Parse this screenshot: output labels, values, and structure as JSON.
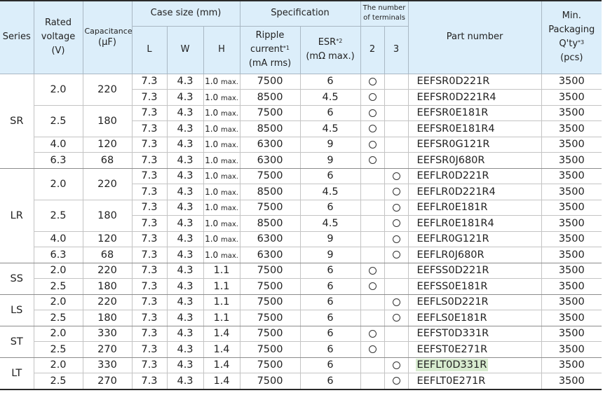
{
  "headers": {
    "series": "Series",
    "rated_voltage": "Rated voltage",
    "rated_voltage_unit": "(V)",
    "capacitance": "Capacitance",
    "capacitance_unit": "(µF)",
    "case_size": "Case size (mm)",
    "case_l": "L",
    "case_w": "W",
    "case_h": "H",
    "specification": "Specification",
    "ripple": "Ripple current",
    "ripple_note": "*1",
    "ripple_unit": "(mA rms)",
    "esr": "ESR",
    "esr_note": "*2",
    "esr_unit": "(mΩ max.)",
    "terminals": "The number of terminals",
    "term_2": "2",
    "term_3": "3",
    "part_number": "Part number",
    "packaging_1": "Min. Packaging",
    "packaging_2": "Q'ty",
    "packaging_note": "*3",
    "packaging_unit": "(pcs)"
  },
  "max_suffix": "max.",
  "series_groups": [
    {
      "series": "SR",
      "voltage_groups": [
        {
          "voltage": "2.0",
          "capacitance": "220",
          "rows": [
            {
              "l": "7.3",
              "w": "4.3",
              "h": "1.0",
              "h_max": true,
              "ripple": "7500",
              "esr": "6",
              "terminals": 2,
              "part": "EEFSR0D221R",
              "qty": "3500"
            },
            {
              "l": "7.3",
              "w": "4.3",
              "h": "1.0",
              "h_max": true,
              "ripple": "8500",
              "esr": "4.5",
              "terminals": 2,
              "part": "EEFSR0D221R4",
              "qty": "3500"
            }
          ]
        },
        {
          "voltage": "2.5",
          "capacitance": "180",
          "rows": [
            {
              "l": "7.3",
              "w": "4.3",
              "h": "1.0",
              "h_max": true,
              "ripple": "7500",
              "esr": "6",
              "terminals": 2,
              "part": "EEFSR0E181R",
              "qty": "3500"
            },
            {
              "l": "7.3",
              "w": "4.3",
              "h": "1.0",
              "h_max": true,
              "ripple": "8500",
              "esr": "4.5",
              "terminals": 2,
              "part": "EEFSR0E181R4",
              "qty": "3500"
            }
          ]
        },
        {
          "voltage": "4.0",
          "capacitance": "120",
          "rows": [
            {
              "l": "7.3",
              "w": "4.3",
              "h": "1.0",
              "h_max": true,
              "ripple": "6300",
              "esr": "9",
              "terminals": 2,
              "part": "EEFSR0G121R",
              "qty": "3500"
            }
          ]
        },
        {
          "voltage": "6.3",
          "capacitance": "68",
          "rows": [
            {
              "l": "7.3",
              "w": "4.3",
              "h": "1.0",
              "h_max": true,
              "ripple": "6300",
              "esr": "9",
              "terminals": 2,
              "part": "EEFSR0J680R",
              "qty": "3500"
            }
          ]
        }
      ]
    },
    {
      "series": "LR",
      "voltage_groups": [
        {
          "voltage": "2.0",
          "capacitance": "220",
          "rows": [
            {
              "l": "7.3",
              "w": "4.3",
              "h": "1.0",
              "h_max": true,
              "ripple": "7500",
              "esr": "6",
              "terminals": 3,
              "part": "EEFLR0D221R",
              "qty": "3500"
            },
            {
              "l": "7.3",
              "w": "4.3",
              "h": "1.0",
              "h_max": true,
              "ripple": "8500",
              "esr": "4.5",
              "terminals": 3,
              "part": "EEFLR0D221R4",
              "qty": "3500"
            }
          ]
        },
        {
          "voltage": "2.5",
          "capacitance": "180",
          "rows": [
            {
              "l": "7.3",
              "w": "4.3",
              "h": "1.0",
              "h_max": true,
              "ripple": "7500",
              "esr": "6",
              "terminals": 3,
              "part": "EEFLR0E181R",
              "qty": "3500"
            },
            {
              "l": "7.3",
              "w": "4.3",
              "h": "1.0",
              "h_max": true,
              "ripple": "8500",
              "esr": "4.5",
              "terminals": 3,
              "part": "EEFLR0E181R4",
              "qty": "3500"
            }
          ]
        },
        {
          "voltage": "4.0",
          "capacitance": "120",
          "rows": [
            {
              "l": "7.3",
              "w": "4.3",
              "h": "1.0",
              "h_max": true,
              "ripple": "6300",
              "esr": "9",
              "terminals": 3,
              "part": "EEFLR0G121R",
              "qty": "3500"
            }
          ]
        },
        {
          "voltage": "6.3",
          "capacitance": "68",
          "rows": [
            {
              "l": "7.3",
              "w": "4.3",
              "h": "1.0",
              "h_max": true,
              "ripple": "6300",
              "esr": "9",
              "terminals": 3,
              "part": "EEFLR0J680R",
              "qty": "3500"
            }
          ]
        }
      ]
    },
    {
      "series": "SS",
      "voltage_groups": [
        {
          "voltage": "2.0",
          "capacitance": "220",
          "rows": [
            {
              "l": "7.3",
              "w": "4.3",
              "h": "1.1",
              "h_max": false,
              "ripple": "7500",
              "esr": "6",
              "terminals": 2,
              "part": "EEFSS0D221R",
              "qty": "3500"
            }
          ]
        },
        {
          "voltage": "2.5",
          "capacitance": "180",
          "rows": [
            {
              "l": "7.3",
              "w": "4.3",
              "h": "1.1",
              "h_max": false,
              "ripple": "7500",
              "esr": "6",
              "terminals": 2,
              "part": "EEFSS0E181R",
              "qty": "3500"
            }
          ]
        }
      ]
    },
    {
      "series": "LS",
      "voltage_groups": [
        {
          "voltage": "2.0",
          "capacitance": "220",
          "rows": [
            {
              "l": "7.3",
              "w": "4.3",
              "h": "1.1",
              "h_max": false,
              "ripple": "7500",
              "esr": "6",
              "terminals": 3,
              "part": "EEFLS0D221R",
              "qty": "3500"
            }
          ]
        },
        {
          "voltage": "2.5",
          "capacitance": "180",
          "rows": [
            {
              "l": "7.3",
              "w": "4.3",
              "h": "1.1",
              "h_max": false,
              "ripple": "7500",
              "esr": "6",
              "terminals": 3,
              "part": "EEFLS0E181R",
              "qty": "3500"
            }
          ]
        }
      ]
    },
    {
      "series": "ST",
      "voltage_groups": [
        {
          "voltage": "2.0",
          "capacitance": "330",
          "rows": [
            {
              "l": "7.3",
              "w": "4.3",
              "h": "1.4",
              "h_max": false,
              "ripple": "7500",
              "esr": "6",
              "terminals": 2,
              "part": "EEFST0D331R",
              "qty": "3500"
            }
          ]
        },
        {
          "voltage": "2.5",
          "capacitance": "270",
          "rows": [
            {
              "l": "7.3",
              "w": "4.3",
              "h": "1.4",
              "h_max": false,
              "ripple": "7500",
              "esr": "6",
              "terminals": 2,
              "part": "EEFST0E271R",
              "qty": "3500"
            }
          ]
        }
      ]
    },
    {
      "series": "LT",
      "voltage_groups": [
        {
          "voltage": "2.0",
          "capacitance": "330",
          "rows": [
            {
              "l": "7.3",
              "w": "4.3",
              "h": "1.4",
              "h_max": false,
              "ripple": "7500",
              "esr": "6",
              "terminals": 3,
              "part": "EEFLT0D331R",
              "qty": "3500",
              "highlighted": true
            }
          ]
        },
        {
          "voltage": "2.5",
          "capacitance": "270",
          "rows": [
            {
              "l": "7.3",
              "w": "4.3",
              "h": "1.4",
              "h_max": false,
              "ripple": "7500",
              "esr": "6",
              "terminals": 3,
              "part": "EEFLT0E271R",
              "qty": "3500"
            }
          ]
        }
      ]
    }
  ],
  "colors": {
    "header_bg": "#dceefa",
    "highlight_bg": "#d8ecd0"
  }
}
